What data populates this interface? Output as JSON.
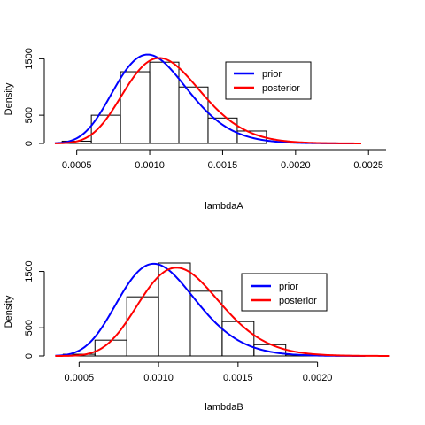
{
  "chart_data": [
    {
      "type": "histogram",
      "xlabel": "lambdaA",
      "ylabel": "Density",
      "xlim": [
        0.00032,
        0.00262
      ],
      "ylim": [
        0,
        1600
      ],
      "x_ticks": [
        "0.0005",
        "0.0010",
        "0.0015",
        "0.0020",
        "0.0025"
      ],
      "x_tick_values": [
        0.0005,
        0.001,
        0.0015,
        0.002,
        0.0025
      ],
      "y_ticks": [
        "0",
        "500",
        "1500"
      ],
      "y_tick_values": [
        0,
        500,
        1500
      ],
      "bins": [
        {
          "from": 0.0004,
          "to": 0.0006,
          "density": 40
        },
        {
          "from": 0.0006,
          "to": 0.0008,
          "density": 500
        },
        {
          "from": 0.0008,
          "to": 0.001,
          "density": 1270
        },
        {
          "from": 0.001,
          "to": 0.0012,
          "density": 1440
        },
        {
          "from": 0.0012,
          "to": 0.0014,
          "density": 1000
        },
        {
          "from": 0.0014,
          "to": 0.0016,
          "density": 450
        },
        {
          "from": 0.0016,
          "to": 0.0018,
          "density": 220
        },
        {
          "from": 0.0018,
          "to": 0.002,
          "density": 0
        }
      ],
      "series": [
        {
          "name": "prior",
          "color": "#0000ff",
          "kind": "gamma",
          "mean": 0.00105,
          "sd": 0.00026,
          "x_range": [
            0.00035,
            0.0024
          ]
        },
        {
          "name": "posterior",
          "color": "#ff0000",
          "kind": "gamma",
          "mean": 0.00113,
          "sd": 0.00027,
          "x_range": [
            0.00035,
            0.00245
          ]
        }
      ],
      "legend": {
        "position": "top-right",
        "entries": [
          "prior",
          "posterior"
        ]
      }
    },
    {
      "type": "histogram",
      "xlabel": "lambdaB",
      "ylabel": "Density",
      "xlim": [
        0.00032,
        0.00247
      ],
      "ylim": [
        0,
        1650
      ],
      "x_ticks": [
        "0.0005",
        "0.0010",
        "0.0015",
        "0.0020"
      ],
      "x_tick_values": [
        0.0005,
        0.001,
        0.0015,
        0.002
      ],
      "y_ticks": [
        "0",
        "500",
        "1500"
      ],
      "y_tick_values": [
        0,
        500,
        1500
      ],
      "bins": [
        {
          "from": 0.0004,
          "to": 0.0006,
          "density": 30
        },
        {
          "from": 0.0006,
          "to": 0.0008,
          "density": 280
        },
        {
          "from": 0.0008,
          "to": 0.001,
          "density": 1050
        },
        {
          "from": 0.001,
          "to": 0.0012,
          "density": 1650
        },
        {
          "from": 0.0012,
          "to": 0.0014,
          "density": 1150
        },
        {
          "from": 0.0014,
          "to": 0.0016,
          "density": 610
        },
        {
          "from": 0.0016,
          "to": 0.0018,
          "density": 200
        },
        {
          "from": 0.0018,
          "to": 0.002,
          "density": 20
        }
      ],
      "series": [
        {
          "name": "prior",
          "color": "#0000ff",
          "kind": "gamma",
          "mean": 0.00103,
          "sd": 0.00025,
          "x_range": [
            0.00035,
            0.0023
          ]
        },
        {
          "name": "posterior",
          "color": "#ff0000",
          "kind": "gamma",
          "mean": 0.00117,
          "sd": 0.00026,
          "x_range": [
            0.00035,
            0.00245
          ]
        }
      ],
      "legend": {
        "position": "top-right",
        "entries": [
          "prior",
          "posterior"
        ]
      }
    }
  ]
}
